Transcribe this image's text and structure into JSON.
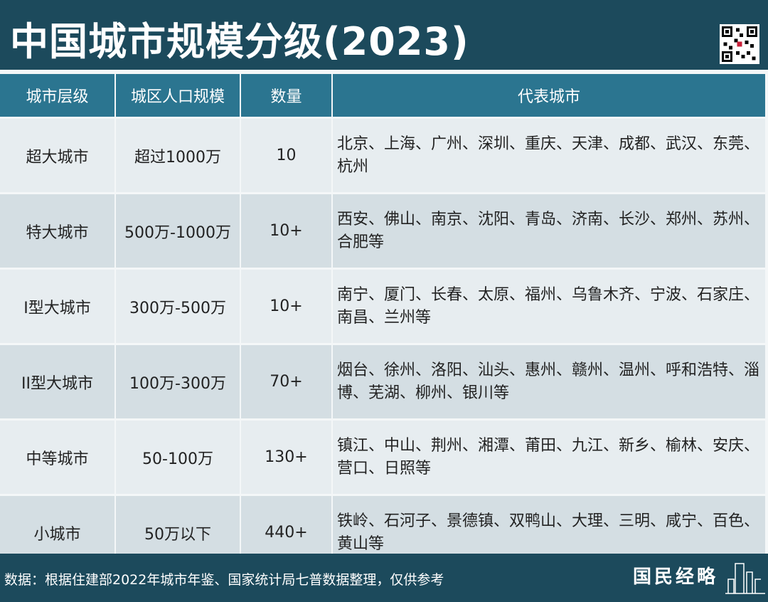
{
  "title": "中国城市规模分级(2023)",
  "table": {
    "headers": [
      "城市层级",
      "城区人口规模",
      "数量",
      "代表城市"
    ],
    "rows": [
      {
        "tier": "超大城市",
        "population": "超过1000万",
        "count": "10",
        "cities": "北京、上海、广州、深圳、重庆、天津、成都、武汉、东莞、杭州"
      },
      {
        "tier": "特大城市",
        "population": "500万-1000万",
        "count": "10+",
        "cities": "西安、佛山、南京、沈阳、青岛、济南、长沙、郑州、苏州、合肥等"
      },
      {
        "tier": "I型大城市",
        "population": "300万-500万",
        "count": "10+",
        "cities": "南宁、厦门、长春、太原、福州、乌鲁木齐、宁波、石家庄、南昌、兰州等"
      },
      {
        "tier": "II型大城市",
        "population": "100万-300万",
        "count": "70+",
        "cities": "烟台、徐州、洛阳、汕头、惠州、赣州、温州、呼和浩特、淄博、芜湖、柳州、银川等"
      },
      {
        "tier": "中等城市",
        "population": "50-100万",
        "count": "130+",
        "cities": "镇江、中山、荆州、湘潭、莆田、九江、新乡、榆林、安庆、营口、日照等"
      },
      {
        "tier": "小城市",
        "population": "50万以下",
        "count": "440+",
        "cities": "铁岭、石河子、景德镇、双鸭山、大理、三明、咸宁、百色、黄山等"
      }
    ]
  },
  "footer": {
    "note": "数据：根据住建部2022年城市年鉴、国家统计局七普数据整理，仅供参考",
    "logo": "国民经略"
  },
  "colors": {
    "title_bg": "#1c4a5c",
    "header_bg": "#2b7590",
    "row_light": "#e7edf0",
    "row_dark": "#d4dee3"
  },
  "icons": {
    "qr": "qr-code-icon",
    "logo": "building-skyline-icon"
  }
}
